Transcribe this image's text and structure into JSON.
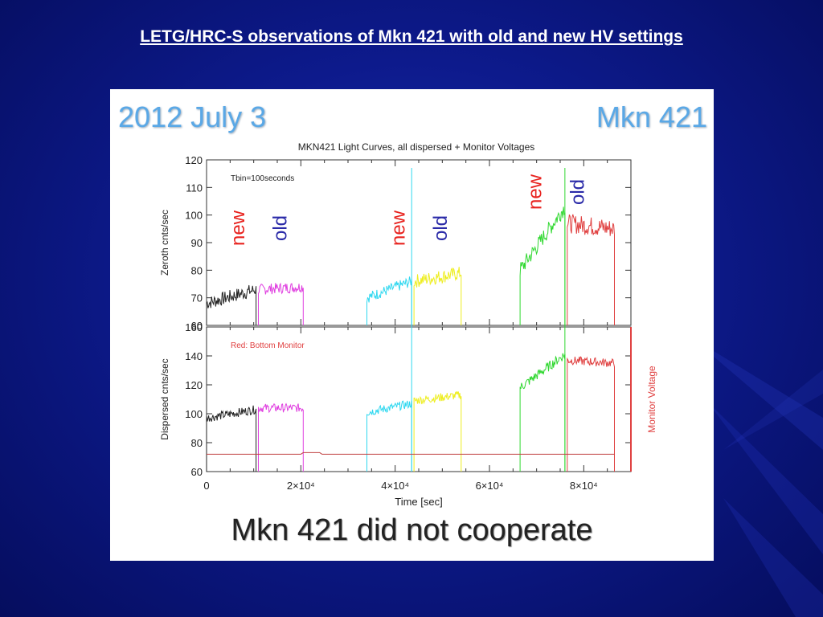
{
  "slide": {
    "title": "LETG/HRC-S observations of Mkn 421 with old and new HV settings",
    "colors": {
      "background": "#0d1a8c",
      "title": "#ffffff"
    }
  },
  "figure": {
    "date_label": "2012 July 3",
    "object_label": "Mkn 421",
    "caption": "Mkn 421 did not cooperate"
  },
  "chart_data": [
    {
      "type": "line",
      "title": "MKN421 Light Curves, all dispersed + Monitor Voltages",
      "xlabel": "",
      "ylabel": "Zeroth cnts/sec",
      "xlim": [
        0,
        90000
      ],
      "ylim": [
        60,
        120
      ],
      "yticks": [
        "60",
        "70",
        "80",
        "90",
        "100",
        "110",
        "120"
      ],
      "annotation": "Tbin=100seconds",
      "labels": [
        {
          "text": "new",
          "color": "#e8231f",
          "x": 8000
        },
        {
          "text": "old",
          "color": "#2a2aa8",
          "x": 17000
        },
        {
          "text": "new",
          "color": "#e8231f",
          "x": 42000
        },
        {
          "text": "old",
          "color": "#2a2aa8",
          "x": 51000
        },
        {
          "text": "new",
          "color": "#e8231f",
          "x": 71000
        },
        {
          "text": "old",
          "color": "#2a2aa8",
          "x": 80000
        }
      ],
      "series": [
        {
          "color": "#222222",
          "x0": 0,
          "x1": 10500,
          "y_start": 68,
          "y_end": 73,
          "noise": 2.5
        },
        {
          "color": "#e040e0",
          "x0": 11000,
          "x1": 20500,
          "y_start": 73,
          "y_end": 74,
          "noise": 2.0
        },
        {
          "color": "#30d8f0",
          "x0": 34000,
          "x1": 43500,
          "y_start": 70,
          "y_end": 76,
          "noise": 2.0
        },
        {
          "color": "#eeee20",
          "x0": 44000,
          "x1": 54000,
          "y_start": 76,
          "y_end": 79,
          "noise": 2.5
        },
        {
          "color": "#30d830",
          "x0": 66500,
          "x1": 76000,
          "y_start": 80,
          "y_end": 103,
          "noise": 3.0
        },
        {
          "color": "#e04040",
          "x0": 76500,
          "x1": 86500,
          "y_start": 97,
          "y_end": 95,
          "noise": 3.5
        }
      ]
    },
    {
      "type": "line",
      "xlabel": "Time [sec]",
      "ylabel": "Dispersed cnts/sec",
      "y2label": "Monitor Voltage",
      "xlim": [
        0,
        90000
      ],
      "ylim": [
        60,
        160
      ],
      "xticks": [
        {
          "value": 0,
          "label": "0"
        },
        {
          "value": 20000,
          "label": "2×10⁴"
        },
        {
          "value": 40000,
          "label": "4×10⁴"
        },
        {
          "value": 60000,
          "label": "6×10⁴"
        },
        {
          "value": 80000,
          "label": "8×10⁴"
        }
      ],
      "yticks": [
        "60",
        "80",
        "100",
        "120",
        "140",
        "160"
      ],
      "annotation": "Red: Bottom Monitor",
      "series": [
        {
          "color": "#222222",
          "x0": 0,
          "x1": 10500,
          "y_start": 97,
          "y_end": 103,
          "noise": 3.0
        },
        {
          "color": "#e040e0",
          "x0": 11000,
          "x1": 20500,
          "y_start": 104,
          "y_end": 104,
          "noise": 3.0
        },
        {
          "color": "#30d8f0",
          "x0": 34000,
          "x1": 43500,
          "y_start": 101,
          "y_end": 107,
          "noise": 3.0
        },
        {
          "color": "#eeee20",
          "x0": 44000,
          "x1": 54000,
          "y_start": 109,
          "y_end": 113,
          "noise": 3.0
        },
        {
          "color": "#30d830",
          "x0": 66500,
          "x1": 76000,
          "y_start": 118,
          "y_end": 141,
          "noise": 3.5
        },
        {
          "color": "#e04040",
          "x0": 76500,
          "x1": 86500,
          "y_start": 137,
          "y_end": 135,
          "noise": 3.0
        }
      ],
      "monitor_level": 72
    }
  ]
}
